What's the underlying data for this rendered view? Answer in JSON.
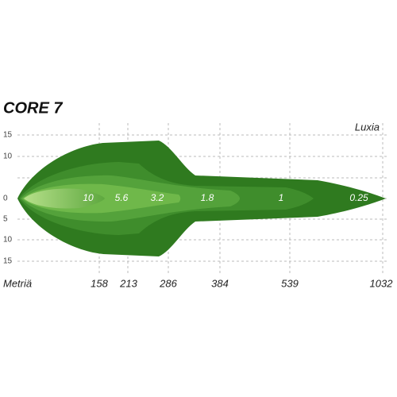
{
  "title": "CORE 7",
  "unit": "Luxia",
  "y_labels": [
    "15",
    "10",
    "0",
    "5",
    "10",
    "15"
  ],
  "x_axis_label": "Metriä",
  "distances": [
    "158",
    "213",
    "286",
    "384",
    "539",
    "1032"
  ],
  "isolux": [
    "10",
    "5.6",
    "3.2",
    "1.8",
    "1",
    "0.25"
  ]
}
